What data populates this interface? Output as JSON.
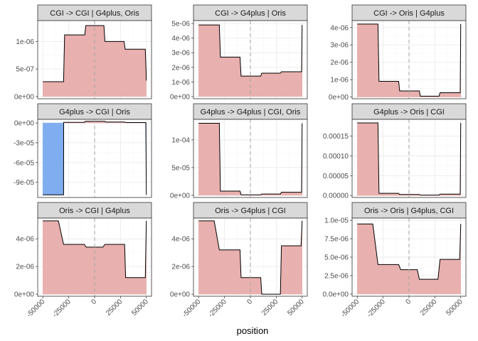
{
  "chart_data": {
    "type": "area",
    "xlabel": "position",
    "ylabel": "",
    "xlim": [
      -55000,
      55000
    ],
    "x_ticks": [
      -50000,
      -25000,
      0,
      25000,
      50000
    ],
    "x_tick_labels": [
      "-50000",
      "-25000",
      "0",
      "25000",
      "50000"
    ],
    "colors": {
      "positive": "#e8b0ae",
      "negative": "#80adf0",
      "line": "#000000",
      "reference_line": "#aaaaaa"
    },
    "grid": true,
    "legend": "none",
    "reference_line_x": 0,
    "panels": [
      {
        "title": "CGI -> CGI | G4plus, Oris",
        "ylim": [
          -4e-08,
          1.38e-06
        ],
        "y_ticks": [
          0,
          5e-07,
          1e-06
        ],
        "y_tick_labels": [
          "0e+00",
          "5e-07",
          "1e-06"
        ],
        "x": [
          -50000,
          -30000,
          -29000,
          -9500,
          -8500,
          -500,
          500,
          9000,
          10000,
          28500,
          29500,
          49000,
          49800,
          50000
        ],
        "y": [
          2.7e-07,
          2.7e-07,
          1.12e-06,
          1.12e-06,
          1.29e-06,
          1.29e-06,
          1.29e-06,
          1.29e-06,
          1e-06,
          1e-06,
          8.6e-07,
          8.6e-07,
          4.4e-07,
          2.9e-07
        ]
      },
      {
        "title": "CGI -> G4plus | Oris",
        "ylim": [
          -1.5e-07,
          5.2e-06
        ],
        "y_ticks": [
          0,
          1e-06,
          2e-06,
          3e-06,
          4e-06,
          5e-06
        ],
        "y_tick_labels": [
          "0e+00",
          "1e-06",
          "2e-06",
          "3e-06",
          "4e-06",
          "5e-06"
        ],
        "x": [
          -50000,
          -30000,
          -29000,
          -10000,
          -9000,
          10000,
          11000,
          29000,
          30000,
          49500,
          50000
        ],
        "y": [
          4.9e-06,
          4.9e-06,
          2.7e-06,
          2.7e-06,
          1.4e-06,
          1.4e-06,
          1.6e-06,
          1.6e-06,
          1.7e-06,
          1.7e-06,
          4.9e-06
        ]
      },
      {
        "title": "CGI -> Oris | G4plus",
        "ylim": [
          -1e-07,
          4.4e-06
        ],
        "y_ticks": [
          0,
          1e-06,
          2e-06,
          3e-06,
          4e-06
        ],
        "y_tick_labels": [
          "0e+00",
          "1e-06",
          "2e-06",
          "3e-06",
          "4e-06"
        ],
        "x": [
          -50000,
          -30000,
          -29000,
          -10000,
          -9000,
          10000,
          11000,
          29000,
          30000,
          49500,
          50000
        ],
        "y": [
          4.2e-06,
          4.2e-06,
          9e-07,
          9e-07,
          3.5e-07,
          3.5e-07,
          5e-08,
          5e-08,
          2.5e-07,
          2.5e-07,
          4.2e-06
        ]
      },
      {
        "title": "G4plus -> CGI | Oris",
        "ylim": [
          -0.000113,
          5.5e-06
        ],
        "y_ticks": [
          0,
          -3e-05,
          -6e-05,
          -9e-05
        ],
        "y_tick_labels": [
          "0e+00",
          "-3e-05",
          "-6e-05",
          "-9e-05"
        ],
        "x": [
          -50000,
          -30000,
          -29900,
          -10000,
          -9000,
          10000,
          11000,
          29000,
          30000,
          49500,
          50000
        ],
        "y": [
          -0.000109,
          -0.000109,
          9e-07,
          9e-07,
          2.5e-06,
          2.5e-06,
          1.4e-06,
          1.4e-06,
          6e-07,
          6e-07,
          -0.000109
        ]
      },
      {
        "title": "G4plus -> G4plus | CGI, Oris",
        "ylim": [
          -4e-06,
          0.000137
        ],
        "y_ticks": [
          0,
          5e-05,
          0.0001
        ],
        "y_tick_labels": [
          "0e+00",
          "5e-05",
          "1e-04"
        ],
        "x": [
          -50000,
          -30000,
          -29000,
          -10000,
          -9000,
          10000,
          11000,
          29000,
          30000,
          49500,
          50000
        ],
        "y": [
          0.00013,
          0.00013,
          7.5e-06,
          7.5e-06,
          8e-07,
          8e-07,
          2.2e-06,
          2.2e-06,
          5.5e-06,
          5.5e-06,
          0.00013
        ]
      },
      {
        "title": "G4plus -> Oris | CGI",
        "ylim": [
          -5e-06,
          0.000192
        ],
        "y_ticks": [
          0,
          5e-05,
          0.0001,
          0.00015
        ],
        "y_tick_labels": [
          "0.00000",
          "0.00005",
          "0.00010",
          "0.00015"
        ],
        "x": [
          -50000,
          -30000,
          -29000,
          -10000,
          -9000,
          10000,
          11000,
          29000,
          30000,
          49500,
          50000
        ],
        "y": [
          0.000183,
          0.000183,
          5.5e-06,
          5.5e-06,
          2.5e-06,
          2.5e-06,
          1e-06,
          1e-06,
          3.5e-06,
          3.5e-06,
          0.000183
        ]
      },
      {
        "title": "Oris -> CGI | G4plus",
        "ylim": [
          -1.5e-07,
          5.5e-06
        ],
        "y_ticks": [
          0,
          2e-06,
          4e-06
        ],
        "y_tick_labels": [
          "0e+00",
          "2e-06",
          "4e-06"
        ],
        "x": [
          -50000,
          -35000,
          -30000,
          -10000,
          -8000,
          8000,
          10000,
          29000,
          30000,
          49000,
          50000
        ],
        "y": [
          5.3e-06,
          5.3e-06,
          3.6e-06,
          3.6e-06,
          3.4e-06,
          3.4e-06,
          3.6e-06,
          3.6e-06,
          1.2e-06,
          1.2e-06,
          5.3e-06
        ]
      },
      {
        "title": "Oris -> G4plus | CGI",
        "ylim": [
          -1.5e-07,
          5.5e-06
        ],
        "y_ticks": [
          0,
          2e-06,
          4e-06
        ],
        "y_tick_labels": [
          "0e+00",
          "2e-06",
          "4e-06"
        ],
        "x": [
          -50000,
          -35000,
          -30000,
          -10000,
          -9000,
          10000,
          11000,
          29000,
          30000,
          49000,
          50000
        ],
        "y": [
          5.3e-06,
          5.3e-06,
          3.2e-06,
          3.2e-06,
          1.2e-06,
          1.2e-06,
          0,
          0,
          3.5e-06,
          3.5e-06,
          5.3e-06
        ]
      },
      {
        "title": "Oris -> Oris | G4plus, CGI",
        "ylim": [
          -3e-07,
          1.03e-05
        ],
        "y_ticks": [
          0,
          2.5e-06,
          5e-06,
          7.5e-06,
          1e-05
        ],
        "y_tick_labels": [
          "0.0e+00",
          "2.5e-06",
          "5.0e-06",
          "7.5e-06",
          "1.0e-05"
        ],
        "x": [
          -50000,
          -35000,
          -30000,
          -10000,
          -8000,
          8000,
          10000,
          28000,
          30000,
          49000,
          50000
        ],
        "y": [
          9.5e-06,
          9.5e-06,
          4e-06,
          4e-06,
          3.3e-06,
          3.3e-06,
          2e-06,
          2e-06,
          4.7e-06,
          4.7e-06,
          9.5e-06
        ]
      }
    ]
  }
}
